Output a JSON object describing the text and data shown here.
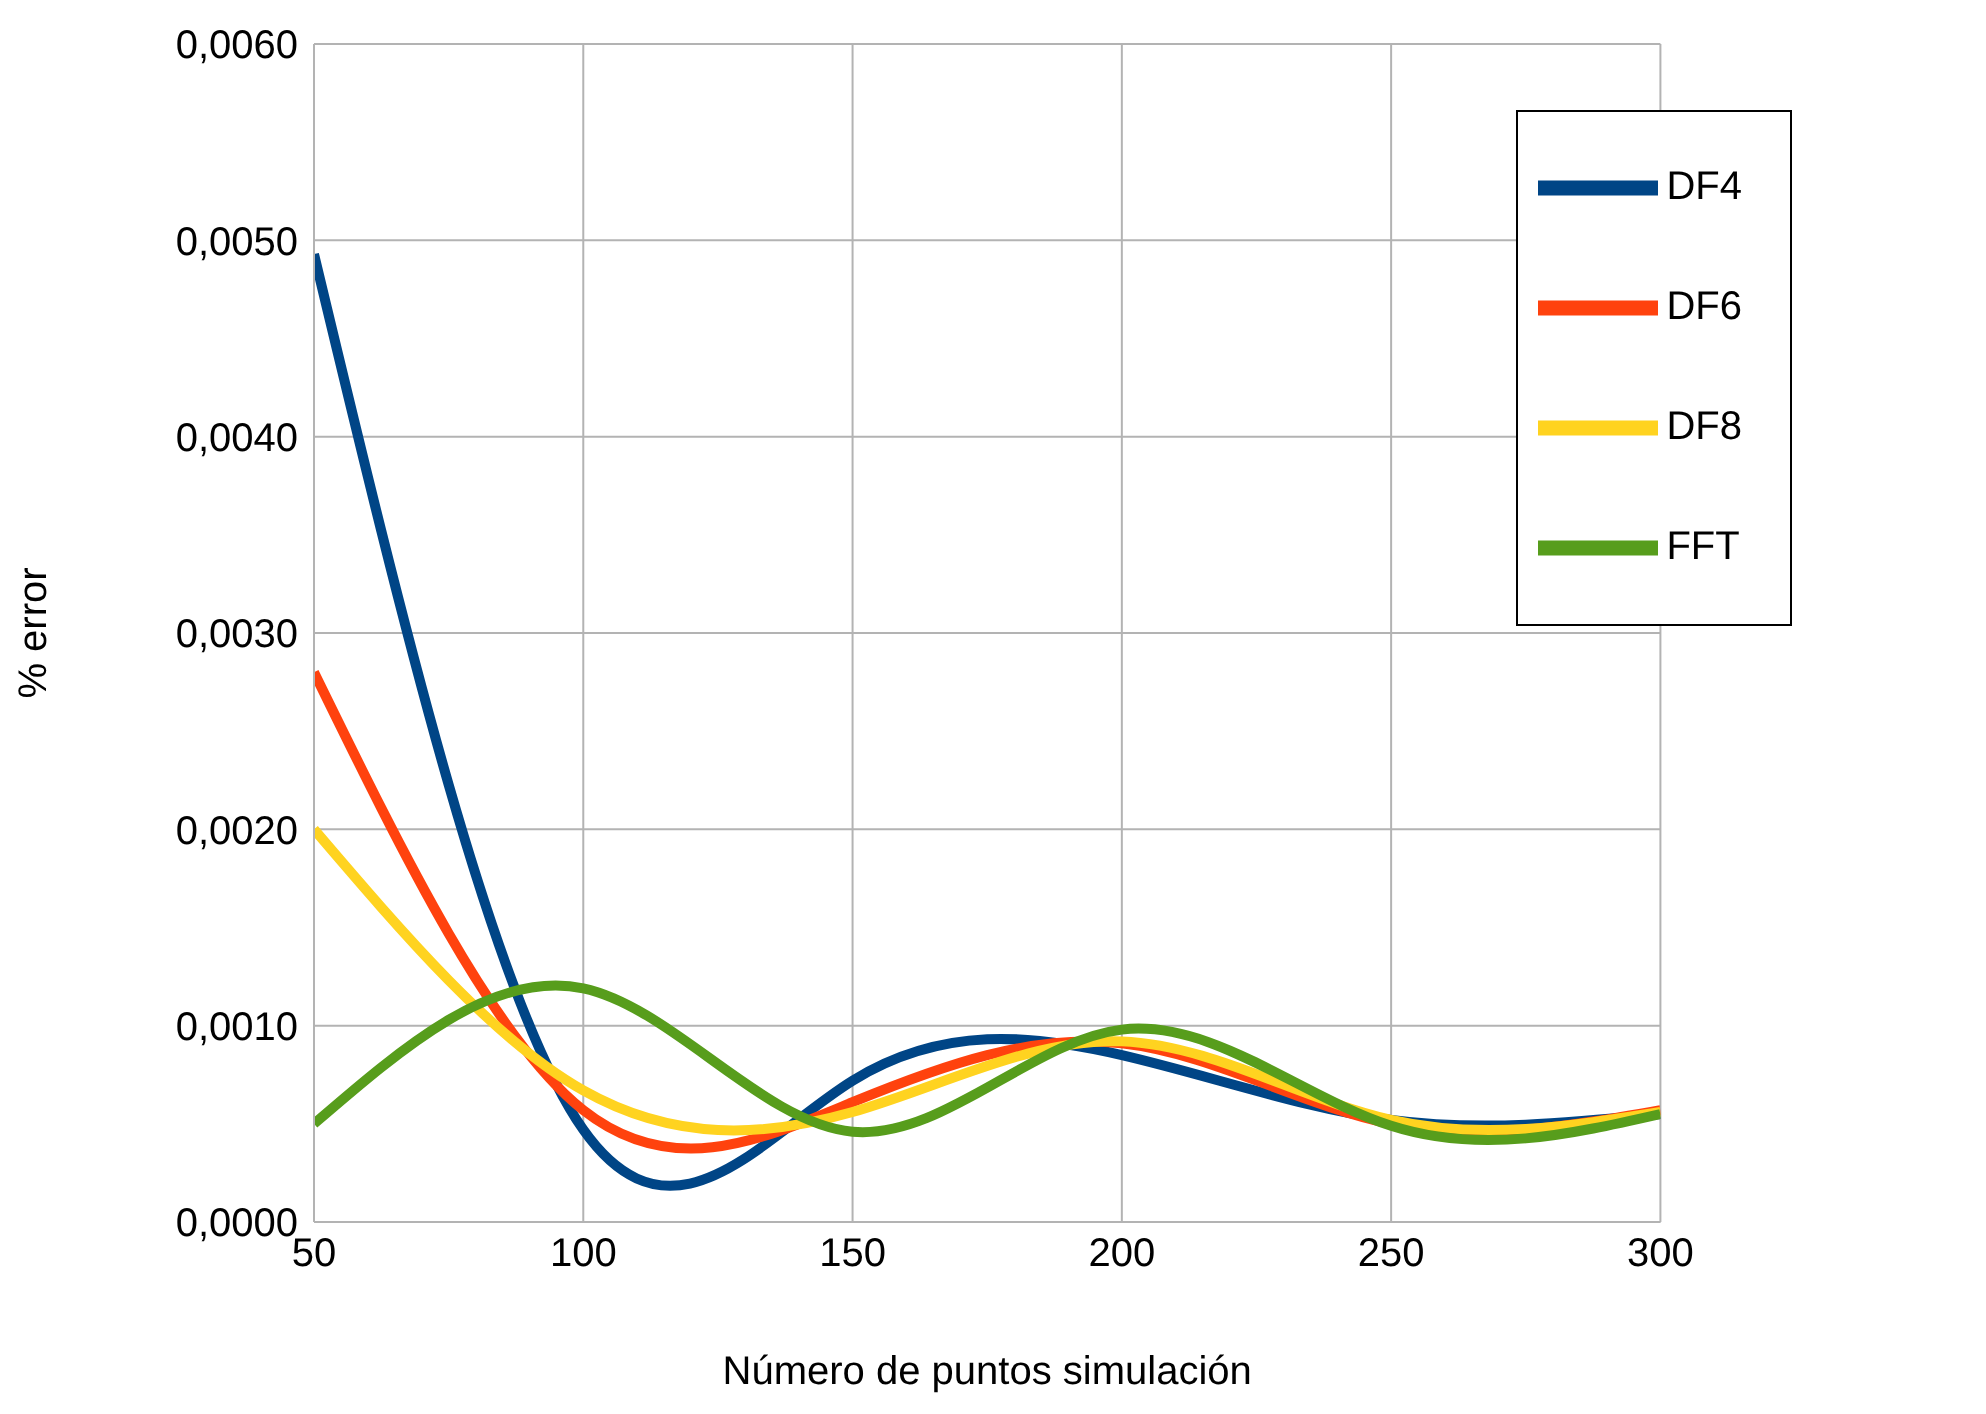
{
  "chart_data": {
    "type": "line",
    "xlabel": "Número de puntos simulación",
    "ylabel": "% error",
    "x": [
      50,
      100,
      150,
      200,
      250,
      300
    ],
    "series": [
      {
        "name": "DF4",
        "color": "#004586",
        "values": [
          0.00493,
          0.00047,
          0.00072,
          0.00085,
          0.00052,
          0.00055
        ]
      },
      {
        "name": "DF6",
        "color": "#ff420e",
        "values": [
          0.0028,
          0.00057,
          0.00061,
          0.00091,
          0.0005,
          0.00057
        ]
      },
      {
        "name": "DF8",
        "color": "#ffd320",
        "values": [
          0.002,
          0.00067,
          0.00056,
          0.00092,
          0.00052,
          0.00056
        ]
      },
      {
        "name": "FFT",
        "color": "#579d1c",
        "values": [
          0.0005,
          0.00119,
          0.00046,
          0.00098,
          0.00049,
          0.00055
        ]
      }
    ],
    "xlim": [
      50,
      300
    ],
    "xticks": [
      50,
      100,
      150,
      200,
      250,
      300
    ],
    "ylim": [
      0,
      0.006
    ],
    "yticks": [
      {
        "value": 0,
        "label": "0,0000"
      },
      {
        "value": 0.001,
        "label": "0,0010"
      },
      {
        "value": 0.002,
        "label": "0,0020"
      },
      {
        "value": 0.003,
        "label": "0,0030"
      },
      {
        "value": 0.004,
        "label": "0,0040"
      },
      {
        "value": 0.005,
        "label": "0,0050"
      },
      {
        "value": 0.006,
        "label": "0,0060"
      }
    ],
    "grid": true,
    "legend": "top right",
    "marker": "none",
    "line_style": "solid"
  }
}
